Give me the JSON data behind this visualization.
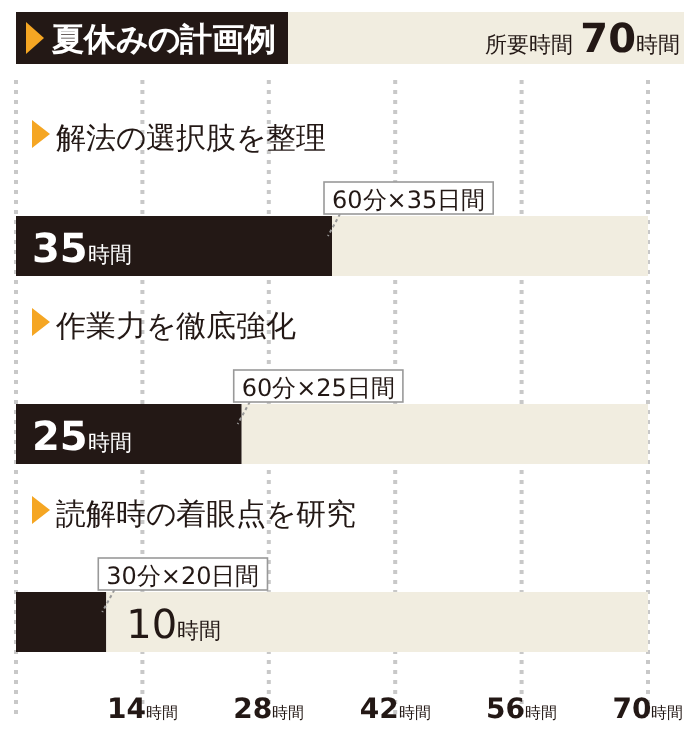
{
  "chart_data": {
    "type": "bar",
    "orientation": "horizontal",
    "stacked": true,
    "title": "夏休みの計画例",
    "subtitle": "所要時間 70時間",
    "categories": [
      "解法の選択肢を整理",
      "作業力を徹底強化",
      "読解時の着眼点を研究"
    ],
    "series": [
      {
        "color": "#231815",
        "values": [
          35,
          25,
          10
        ],
        "value_labels": [
          "35時間",
          "25時間",
          "10時間"
        ]
      },
      {
        "color": "#f1ede0",
        "values": [
          35,
          45,
          60
        ]
      }
    ],
    "xlim": [
      0,
      70
    ],
    "xticks": [
      {
        "value": 14,
        "label": "14時間"
      },
      {
        "value": 28,
        "label": "28時間"
      },
      {
        "value": 42,
        "label": "42時間"
      },
      {
        "value": 56,
        "label": "56時間"
      },
      {
        "value": 70,
        "label": "70時間"
      }
    ],
    "grid": "x",
    "annotations": [
      {
        "text": "60分×35日間",
        "x": 35,
        "y": "解法の選択肢を整理"
      },
      {
        "text": "60分×25日間",
        "x": 25,
        "y": "作業力を徹底強化"
      },
      {
        "text": "30分×20日間",
        "x": 10,
        "y": "読解時の着眼点を研究"
      }
    ]
  }
}
